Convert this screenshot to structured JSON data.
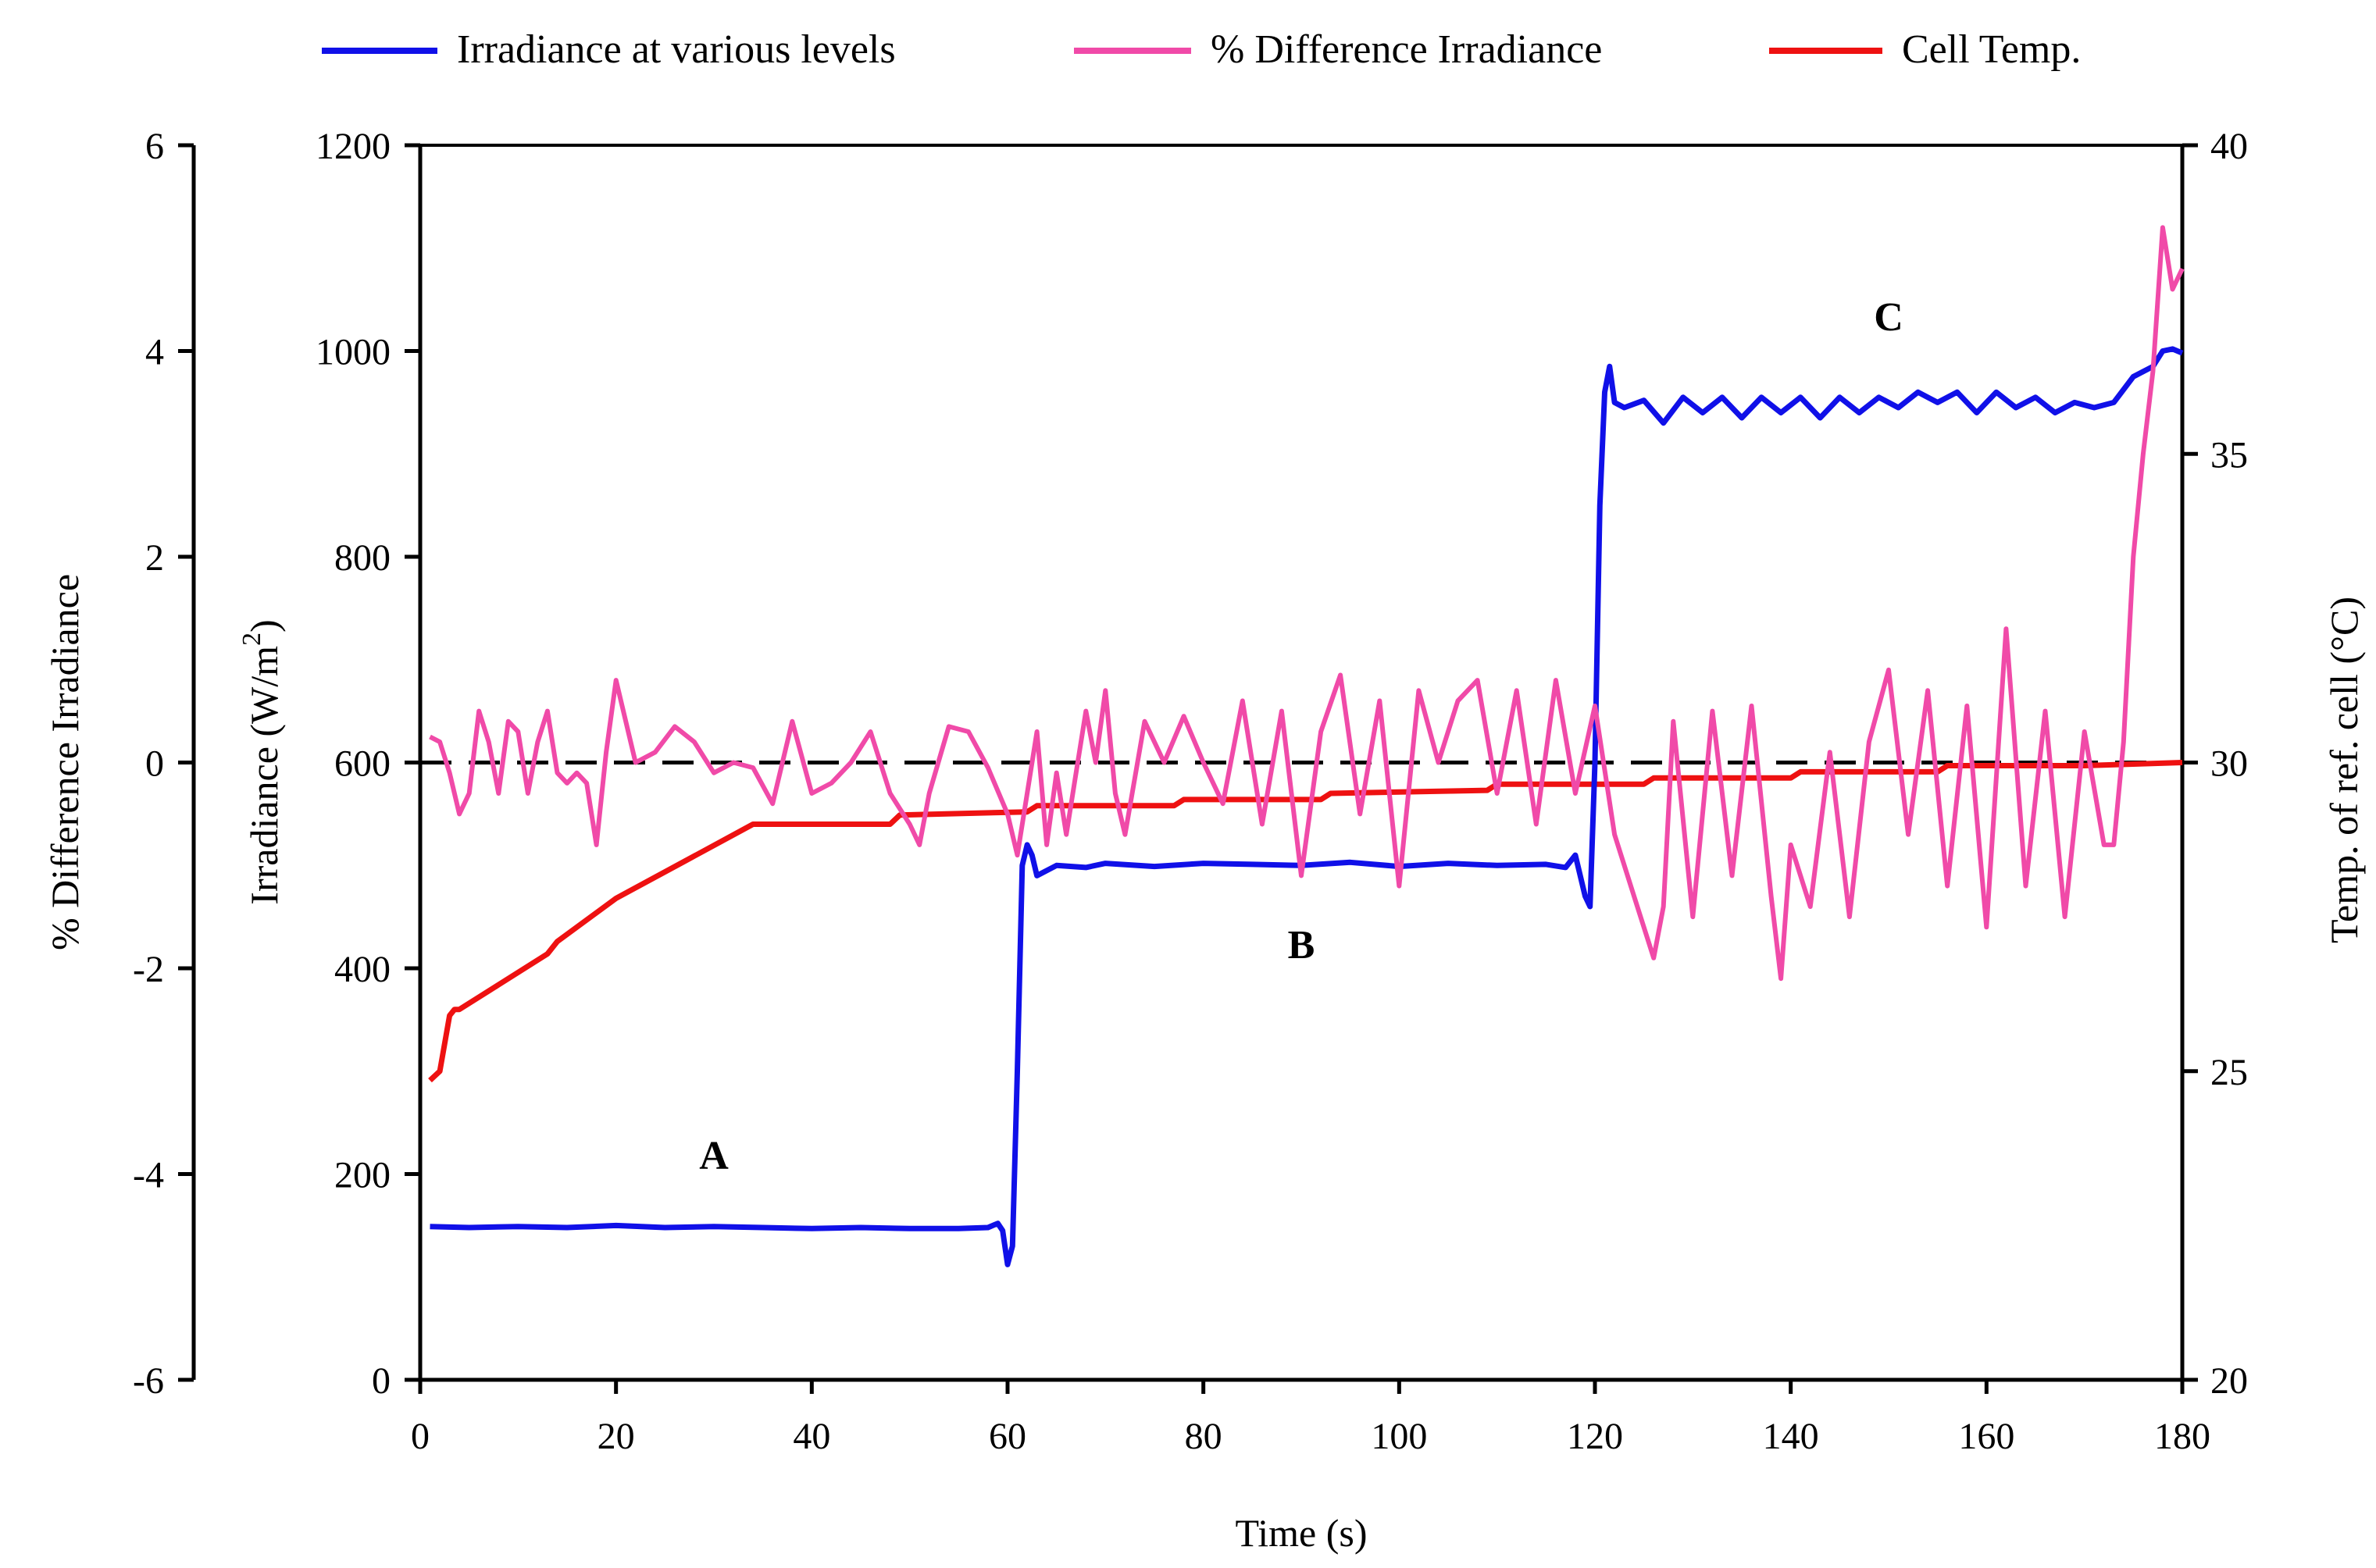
{
  "chart_data": {
    "type": "line",
    "title": "",
    "xlabel": "Time (s)",
    "ylabel_left_outer": "% Difference Irradiance",
    "ylabel_left_inner": "Irradiance (W/m",
    "ylabel_left_inner_sup": "2",
    "ylabel_left_inner_close": ")",
    "ylabel_right": "Temp. of ref. cell (°C)",
    "xlim": [
      0,
      180
    ],
    "ylim_irradiance": [
      0,
      1200
    ],
    "ylim_percent": [
      -6,
      6
    ],
    "ylim_temp": [
      20,
      40
    ],
    "x_ticks": [
      "0",
      "20",
      "40",
      "60",
      "80",
      "100",
      "120",
      "140",
      "160",
      "180"
    ],
    "irradiance_ticks": [
      "0",
      "200",
      "400",
      "600",
      "800",
      "1000",
      "1200"
    ],
    "percent_ticks": [
      "-6",
      "-4",
      "-2",
      "0",
      "2",
      "4",
      "6"
    ],
    "temp_ticks": [
      "20",
      "25",
      "30",
      "35",
      "40"
    ],
    "reference_line_percent": 0,
    "legend_position": "top",
    "colors": {
      "irradiance": "#1010e8",
      "percent_difference": "#f04aa8",
      "cell_temp": "#ee1111",
      "reference": "#000000"
    },
    "annotations": [
      {
        "label": "A",
        "x": 30,
        "irradiance": 205
      },
      {
        "label": "B",
        "x": 90,
        "irradiance": 410
      },
      {
        "label": "C",
        "x": 150,
        "irradiance": 1020
      }
    ],
    "series": [
      {
        "key": "irradiance",
        "name": "Irradiance at various levels",
        "axis": "irradiance",
        "x": [
          1,
          5,
          10,
          15,
          20,
          25,
          30,
          35,
          40,
          45,
          50,
          55,
          58,
          59,
          59.5,
          60,
          60.5,
          61,
          61.5,
          62,
          62.5,
          63,
          65,
          68,
          70,
          75,
          80,
          85,
          90,
          95,
          100,
          105,
          110,
          115,
          117,
          118,
          119,
          119.5,
          120,
          120.5,
          121,
          121.5,
          122,
          123,
          125,
          127,
          129,
          131,
          133,
          135,
          137,
          139,
          141,
          143,
          145,
          147,
          149,
          151,
          153,
          155,
          157,
          159,
          161,
          163,
          165,
          167,
          169,
          171,
          173,
          175,
          177,
          178,
          179,
          180
        ],
        "values": [
          149,
          148,
          149,
          148,
          150,
          148,
          149,
          148,
          147,
          148,
          147,
          147,
          148,
          152,
          145,
          112,
          130,
          300,
          500,
          520,
          510,
          490,
          500,
          498,
          502,
          499,
          502,
          501,
          500,
          503,
          499,
          502,
          500,
          501,
          498,
          510,
          470,
          460,
          600,
          850,
          960,
          985,
          950,
          945,
          952,
          930,
          955,
          940,
          955,
          935,
          955,
          940,
          955,
          935,
          955,
          940,
          955,
          945,
          960,
          950,
          960,
          940,
          960,
          945,
          955,
          940,
          950,
          945,
          950,
          975,
          985,
          1000,
          1002,
          998
        ]
      },
      {
        "key": "percent",
        "name": "% Difference Irradiance",
        "axis": "percent",
        "x": [
          1,
          2,
          3,
          4,
          5,
          6,
          7,
          8,
          9,
          10,
          11,
          12,
          13,
          14,
          15,
          16,
          17,
          18,
          19,
          20,
          22,
          24,
          26,
          28,
          30,
          32,
          34,
          36,
          38,
          40,
          42,
          44,
          46,
          48,
          50,
          51,
          52,
          54,
          56,
          58,
          60,
          61,
          62,
          63,
          64,
          65,
          66,
          67,
          68,
          69,
          70,
          71,
          72,
          74,
          76,
          78,
          80,
          82,
          84,
          86,
          88,
          90,
          92,
          94,
          96,
          98,
          100,
          102,
          104,
          106,
          108,
          110,
          112,
          114,
          116,
          118,
          120,
          122,
          124,
          126,
          127,
          128,
          130,
          132,
          134,
          136,
          138,
          139,
          140,
          142,
          144,
          146,
          148,
          150,
          152,
          154,
          156,
          158,
          160,
          162,
          164,
          166,
          168,
          170,
          172,
          173,
          174,
          175,
          176,
          177,
          178,
          179,
          180
        ],
        "values": [
          0.25,
          0.2,
          -0.1,
          -0.5,
          -0.3,
          0.5,
          0.2,
          -0.3,
          0.4,
          0.3,
          -0.3,
          0.2,
          0.5,
          -0.1,
          -0.2,
          -0.1,
          -0.2,
          -0.8,
          0.1,
          0.8,
          0.0,
          0.1,
          0.35,
          0.2,
          -0.1,
          0.0,
          -0.05,
          -0.4,
          0.4,
          -0.3,
          -0.2,
          0.0,
          0.3,
          -0.3,
          -0.6,
          -0.8,
          -0.3,
          0.35,
          0.3,
          -0.05,
          -0.5,
          -0.9,
          -0.3,
          0.3,
          -0.8,
          -0.1,
          -0.7,
          -0.1,
          0.5,
          0.0,
          0.7,
          -0.3,
          -0.7,
          0.4,
          0.0,
          0.45,
          0.0,
          -0.4,
          0.6,
          -0.6,
          0.5,
          -1.1,
          0.3,
          0.85,
          -0.5,
          0.6,
          -1.2,
          0.7,
          0.0,
          0.6,
          0.8,
          -0.3,
          0.7,
          -0.6,
          0.8,
          -0.3,
          0.55,
          -0.7,
          -1.3,
          -1.9,
          -1.4,
          0.4,
          -1.5,
          0.5,
          -1.1,
          0.55,
          -1.3,
          -2.1,
          -0.8,
          -1.4,
          0.1,
          -1.5,
          0.2,
          0.9,
          -0.7,
          0.7,
          -1.2,
          0.55,
          -1.6,
          1.3,
          -1.2,
          0.5,
          -1.5,
          0.3,
          -0.8,
          -0.8,
          0.2,
          2.0,
          3.0,
          3.8,
          5.2,
          4.6,
          4.8
        ]
      },
      {
        "key": "temp",
        "name": "Cell Temp.",
        "axis": "temp",
        "x": [
          1,
          2,
          3,
          3.5,
          4,
          8,
          13,
          14,
          20,
          27,
          34,
          35,
          48,
          49,
          62,
          63,
          77,
          78,
          92,
          93,
          109,
          110,
          125,
          126,
          140,
          141,
          155,
          156,
          170,
          180
        ],
        "values": [
          24.85,
          25.0,
          25.9,
          26.0,
          26.0,
          26.4,
          26.9,
          27.1,
          27.8,
          28.4,
          29.0,
          29.0,
          29.0,
          29.15,
          29.2,
          29.3,
          29.3,
          29.4,
          29.4,
          29.5,
          29.55,
          29.65,
          29.65,
          29.75,
          29.75,
          29.85,
          29.85,
          29.95,
          29.95,
          30.0
        ]
      }
    ]
  }
}
